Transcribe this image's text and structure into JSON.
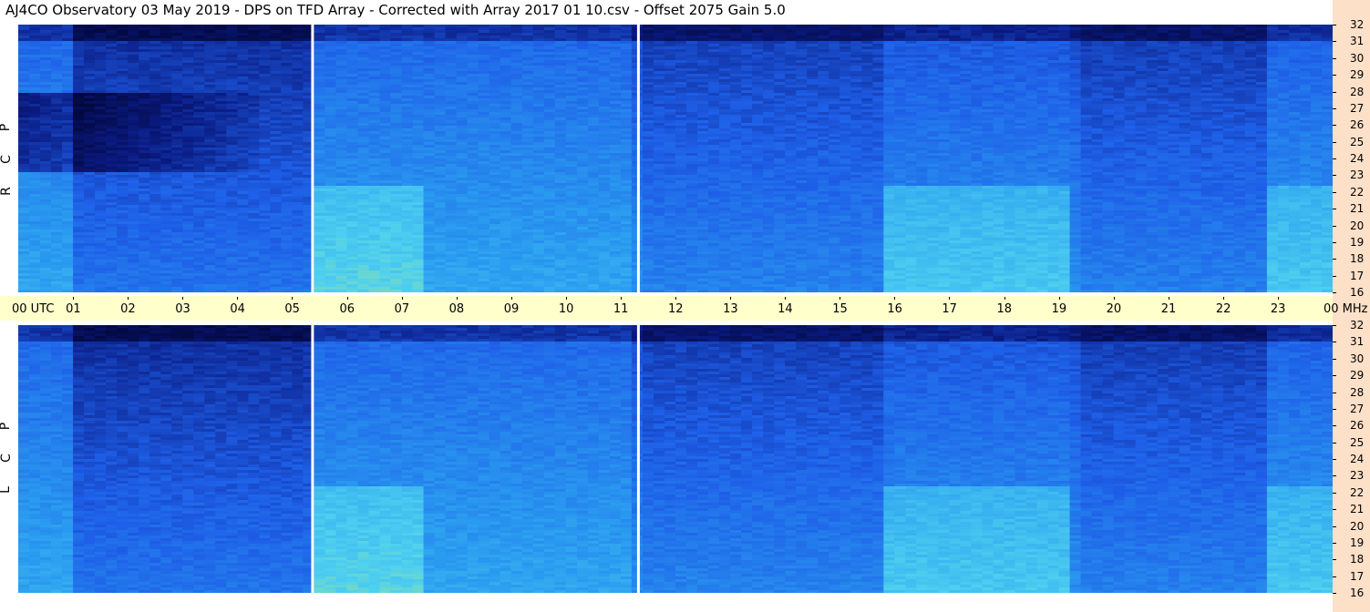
{
  "title": "AJ4CO Observatory  03 May 2019  -  DPS on TFD Array  -  Corrected with Array 2017 01 10.csv  -  Offset 2075  Gain 5.0",
  "chart_data": {
    "type": "heatmap",
    "panels": [
      {
        "polarization_letters": [
          "R",
          "C",
          "P"
        ]
      },
      {
        "polarization_letters": [
          "L",
          "C",
          "P"
        ]
      }
    ],
    "x_axis": {
      "start_label": "00 UTC",
      "end_label": "00 MHz",
      "ticks": [
        "01",
        "02",
        "03",
        "04",
        "05",
        "06",
        "07",
        "08",
        "09",
        "10",
        "11",
        "12",
        "13",
        "14",
        "15",
        "16",
        "17",
        "18",
        "19",
        "20",
        "21",
        "22",
        "23"
      ]
    },
    "y_axis": {
      "ticks": [
        "32",
        "31",
        "30",
        "29",
        "28",
        "27",
        "26",
        "25",
        "24",
        "23",
        "22",
        "21",
        "20",
        "19",
        "18",
        "17",
        "16"
      ],
      "ylim": [
        16,
        32
      ]
    },
    "data_gaps_utc": [
      5.35,
      11.3
    ],
    "colormap": [
      "#000020",
      "#0a1a80",
      "#1e5fe8",
      "#2a9cf0",
      "#4ed0f0",
      "#c8f060"
    ]
  }
}
